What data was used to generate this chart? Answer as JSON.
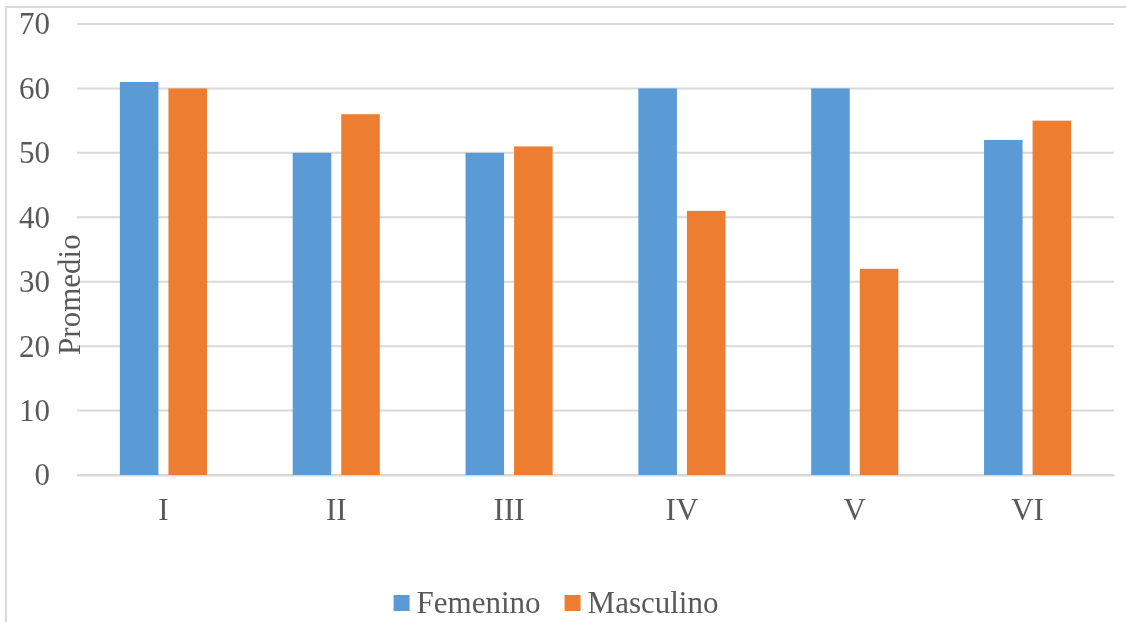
{
  "chart_data": {
    "type": "bar",
    "ylabel": "Promedio",
    "categories": [
      "I",
      "II",
      "III",
      "IV",
      "V",
      "VI"
    ],
    "series": [
      {
        "name": "Femenino",
        "color": "#5b9bd5",
        "values": [
          61,
          50,
          50,
          60,
          60,
          52
        ]
      },
      {
        "name": "Masculino",
        "color": "#ed7d31",
        "values": [
          60,
          56,
          51,
          41,
          32,
          55
        ]
      }
    ],
    "ylim": [
      0,
      70
    ],
    "yticks": [
      0,
      10,
      20,
      30,
      40,
      50,
      60,
      70
    ],
    "grid": "y",
    "legend": "bottom"
  }
}
